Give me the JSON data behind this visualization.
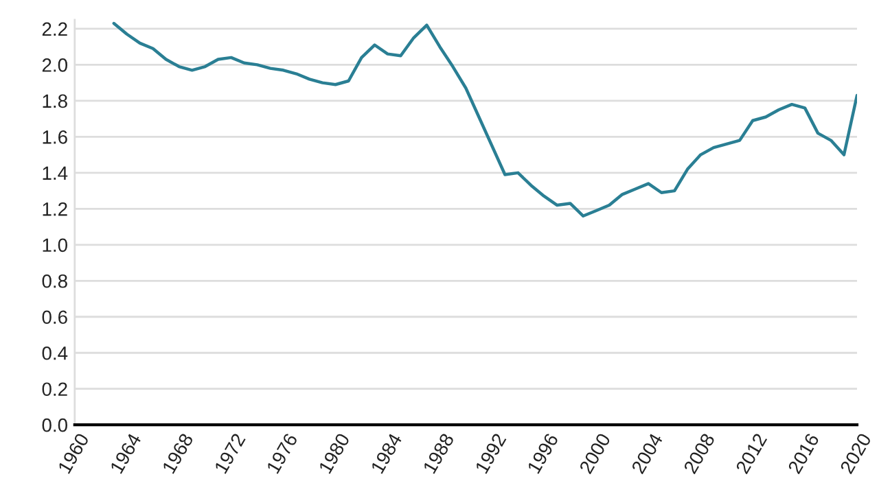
{
  "chart_data": {
    "type": "line",
    "x": [
      1963,
      1964,
      1965,
      1966,
      1967,
      1968,
      1969,
      1970,
      1971,
      1972,
      1973,
      1974,
      1975,
      1976,
      1977,
      1978,
      1979,
      1980,
      1981,
      1982,
      1983,
      1984,
      1985,
      1986,
      1987,
      1988,
      1989,
      1990,
      1991,
      1992,
      1993,
      1994,
      1995,
      1996,
      1997,
      1998,
      1999,
      2000,
      2001,
      2002,
      2003,
      2004,
      2005,
      2006,
      2007,
      2008,
      2009,
      2010,
      2011,
      2012,
      2013,
      2014,
      2015,
      2016,
      2017,
      2018,
      2019,
      2020
    ],
    "series": [
      {
        "color": "#2a7f94",
        "values": [
          2.23,
          2.17,
          2.12,
          2.09,
          2.03,
          1.99,
          1.97,
          1.99,
          2.03,
          2.04,
          2.01,
          2.0,
          1.98,
          1.97,
          1.95,
          1.92,
          1.9,
          1.89,
          1.91,
          2.04,
          2.11,
          2.06,
          2.05,
          2.15,
          2.22,
          2.1,
          1.99,
          1.87,
          1.71,
          1.55,
          1.39,
          1.4,
          1.33,
          1.27,
          1.22,
          1.23,
          1.16,
          1.19,
          1.22,
          1.28,
          1.31,
          1.34,
          1.29,
          1.3,
          1.42,
          1.5,
          1.54,
          1.56,
          1.58,
          1.69,
          1.71,
          1.75,
          1.78,
          1.76,
          1.62,
          1.58,
          1.5,
          1.83
        ]
      }
    ],
    "xlim": [
      1960,
      2020
    ],
    "xticks": [
      1960,
      1964,
      1968,
      1972,
      1976,
      1980,
      1984,
      1988,
      1992,
      1996,
      2000,
      2004,
      2008,
      2012,
      2016,
      2020
    ],
    "ylim": [
      0,
      2.25
    ],
    "yticks": [
      {
        "value": 0,
        "label": "0.0"
      },
      {
        "value": 0.2,
        "label": "0.2"
      },
      {
        "value": 0.4,
        "label": "0.4"
      },
      {
        "value": 0.6,
        "label": "0.6"
      },
      {
        "value": 0.8,
        "label": "0.8"
      },
      {
        "value": 1.0,
        "label": "1.0"
      },
      {
        "value": 1.2,
        "label": "1.2"
      },
      {
        "value": 1.4,
        "label": "1.4"
      },
      {
        "value": 1.6,
        "label": "1.6"
      },
      {
        "value": 1.8,
        "label": "1.8"
      },
      {
        "value": 2.0,
        "label": "2.0"
      },
      {
        "value": 2.2,
        "label": "2.2"
      }
    ],
    "grid": "y",
    "marker": "none",
    "line_style": "solid"
  }
}
